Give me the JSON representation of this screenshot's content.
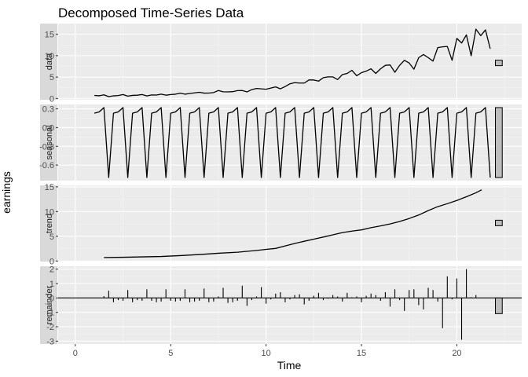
{
  "chart_data": {
    "type": "line",
    "title": "Decomposed Time-Series Data",
    "xlabel": "Time",
    "ylabel": "earnings",
    "xlim": [
      -0.9,
      23.4
    ],
    "x_ticks": [
      0,
      5,
      10,
      15,
      20
    ],
    "x_tick_labels": [
      "0",
      "5",
      "10",
      "15",
      "20"
    ],
    "grid": true,
    "theme": "ggplot2 grey",
    "facets": [
      {
        "name": "data",
        "strip_label": "data",
        "type": "line",
        "ylim": [
          -0.3,
          17.5
        ],
        "y_ticks": [
          0,
          5,
          10,
          15
        ],
        "y_tick_labels": [
          "0",
          "5",
          "10",
          "15"
        ],
        "x": [
          1.0,
          1.25,
          1.5,
          1.75,
          2.0,
          2.25,
          2.5,
          2.75,
          3.0,
          3.25,
          3.5,
          3.75,
          4.0,
          4.25,
          4.5,
          4.75,
          5.0,
          5.25,
          5.5,
          5.75,
          6.0,
          6.25,
          6.5,
          6.75,
          7.0,
          7.25,
          7.5,
          7.75,
          8.0,
          8.25,
          8.5,
          8.75,
          9.0,
          9.25,
          9.5,
          9.75,
          10.0,
          10.25,
          10.5,
          10.75,
          11.0,
          11.25,
          11.5,
          11.75,
          12.0,
          12.25,
          12.5,
          12.75,
          13.0,
          13.25,
          13.5,
          13.75,
          14.0,
          14.25,
          14.5,
          14.75,
          15.0,
          15.25,
          15.5,
          15.75,
          16.0,
          16.25,
          16.5,
          16.75,
          17.0,
          17.25,
          17.5,
          17.75,
          18.0,
          18.25,
          18.5,
          18.75,
          19.0,
          19.25,
          19.5,
          19.75,
          20.0,
          20.25,
          20.5,
          20.75,
          21.0,
          21.25,
          21.5,
          21.75
        ],
        "values": [
          0.71,
          0.63,
          0.85,
          0.44,
          0.61,
          0.69,
          0.92,
          0.55,
          0.72,
          0.77,
          0.92,
          0.6,
          0.83,
          0.8,
          1.0,
          0.77,
          0.92,
          1.0,
          1.24,
          1.0,
          1.16,
          1.3,
          1.45,
          1.25,
          1.26,
          1.38,
          1.86,
          1.56,
          1.53,
          1.59,
          1.83,
          1.86,
          1.53,
          2.07,
          2.34,
          2.25,
          2.16,
          2.43,
          2.7,
          2.25,
          2.79,
          3.42,
          3.69,
          3.6,
          3.6,
          4.32,
          4.32,
          4.05,
          4.86,
          5.04,
          5.04,
          4.41,
          5.58,
          5.85,
          6.57,
          5.31,
          6.03,
          6.39,
          6.93,
          5.85,
          6.93,
          7.74,
          7.83,
          6.12,
          7.74,
          8.91,
          8.28,
          6.84,
          9.54,
          10.26,
          9.54,
          8.73,
          11.88,
          12.06,
          12.15,
          8.91,
          14.04,
          12.96,
          14.85,
          9.99,
          16.2,
          14.67,
          16.02,
          11.61
        ],
        "range_bar": true
      },
      {
        "name": "seasonal",
        "strip_label": "seasonal",
        "type": "line",
        "ylim": [
          -0.85,
          0.37
        ],
        "y_ticks": [
          -0.6,
          -0.3,
          0.0,
          0.3
        ],
        "y_tick_labels": [
          "-0.6",
          "-0.3",
          "0.0",
          "0.3"
        ],
        "x_start": 1.0,
        "x_step": 0.25,
        "cycle": [
          0.23,
          0.25,
          0.32,
          -0.8
        ],
        "n_points": 84,
        "range_bar": true
      },
      {
        "name": "trend",
        "strip_label": "trend",
        "type": "line",
        "ylim": [
          -0.1,
          15.3
        ],
        "y_ticks": [
          0,
          5,
          10,
          15
        ],
        "y_tick_labels": [
          "0",
          "5",
          "10",
          "15"
        ],
        "x": [
          1.5,
          2.5,
          3.5,
          4.5,
          5.5,
          6.5,
          7.5,
          8.5,
          9.5,
          10.0,
          10.5,
          11.0,
          11.5,
          12.0,
          12.5,
          13.0,
          13.5,
          14.0,
          14.5,
          15.0,
          15.5,
          16.0,
          16.5,
          17.0,
          17.5,
          18.0,
          18.5,
          19.0,
          19.5,
          20.0,
          20.5,
          21.0,
          21.3
        ],
        "values": [
          0.72,
          0.76,
          0.84,
          0.92,
          1.1,
          1.32,
          1.58,
          1.78,
          2.14,
          2.36,
          2.55,
          3.05,
          3.55,
          4.0,
          4.42,
          4.85,
          5.3,
          5.75,
          6.05,
          6.3,
          6.75,
          7.1,
          7.5,
          8.0,
          8.6,
          9.3,
          10.2,
          11.0,
          11.6,
          12.25,
          13.0,
          13.8,
          14.4
        ],
        "range_bar": true
      },
      {
        "name": "remainder",
        "strip_label": "remainder",
        "type": "segment",
        "ylim": [
          -3.2,
          2.2
        ],
        "y_ticks": [
          -3,
          -2,
          -1,
          0,
          1,
          2
        ],
        "y_tick_labels": [
          "-3",
          "-2",
          "-1",
          "0",
          "1",
          "2"
        ],
        "x": [
          1.5,
          1.75,
          2.0,
          2.25,
          2.5,
          2.75,
          3.0,
          3.25,
          3.5,
          3.75,
          4.0,
          4.25,
          4.5,
          4.75,
          5.0,
          5.25,
          5.5,
          5.75,
          6.0,
          6.25,
          6.5,
          6.75,
          7.0,
          7.25,
          7.5,
          7.75,
          8.0,
          8.25,
          8.5,
          8.75,
          9.0,
          9.25,
          9.5,
          9.75,
          10.0,
          10.25,
          10.5,
          10.75,
          11.0,
          11.25,
          11.5,
          11.75,
          12.0,
          12.25,
          12.5,
          12.75,
          13.0,
          13.25,
          13.5,
          13.75,
          14.0,
          14.25,
          14.5,
          14.75,
          15.0,
          15.25,
          15.5,
          15.75,
          16.0,
          16.25,
          16.5,
          16.75,
          17.0,
          17.25,
          17.5,
          17.75,
          18.0,
          18.25,
          18.5,
          18.75,
          19.0,
          19.25,
          19.5,
          19.75,
          20.0,
          20.25,
          20.5,
          20.75,
          21.0
        ],
        "values": [
          0.12,
          0.5,
          -0.3,
          -0.15,
          -0.2,
          0.55,
          -0.3,
          -0.15,
          -0.2,
          0.6,
          -0.2,
          -0.3,
          -0.25,
          0.6,
          -0.2,
          -0.25,
          -0.2,
          0.6,
          -0.3,
          -0.25,
          -0.2,
          0.65,
          -0.3,
          -0.25,
          0.1,
          0.7,
          -0.35,
          -0.3,
          -0.2,
          0.85,
          -0.55,
          -0.15,
          0.1,
          0.75,
          -0.4,
          -0.1,
          0.3,
          0.4,
          -0.3,
          -0.1,
          0.2,
          0.25,
          -0.45,
          -0.2,
          0.15,
          0.35,
          -0.15,
          -0.05,
          0.2,
          0.1,
          -0.25,
          0.35,
          0.05,
          0.1,
          -0.3,
          0.15,
          0.3,
          0.2,
          -0.2,
          0.4,
          -0.6,
          0.6,
          -0.15,
          -0.9,
          0.55,
          0.6,
          -0.5,
          -0.8,
          0.7,
          0.55,
          -0.25,
          -2.1,
          1.5,
          -0.1,
          1.35,
          -2.9,
          2.0,
          0.05,
          0.2
        ],
        "range_bar": true
      }
    ]
  }
}
